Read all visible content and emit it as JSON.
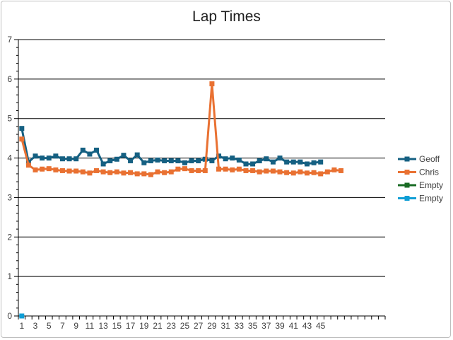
{
  "chart_data": {
    "type": "line",
    "title": "Lap Times",
    "ylim": [
      0,
      7
    ],
    "y_ticks": [
      0,
      1,
      2,
      3,
      4,
      5,
      6,
      7
    ],
    "x_tick_labels": [
      1,
      3,
      5,
      7,
      9,
      11,
      13,
      15,
      17,
      19,
      21,
      23,
      25,
      27,
      29,
      31,
      33,
      35,
      37,
      39,
      41,
      43,
      45
    ],
    "x_count": 54,
    "grid": true,
    "legend_position": "right",
    "series": [
      {
        "name": "Geoff",
        "color": "#156082",
        "marker": "square",
        "x": [
          1,
          2,
          3,
          4,
          5,
          6,
          7,
          8,
          9,
          10,
          11,
          12,
          13,
          14,
          15,
          16,
          17,
          18,
          19,
          20,
          21,
          22,
          23,
          24,
          25,
          26,
          27,
          28,
          29,
          30,
          31,
          32,
          33,
          34,
          35,
          36,
          37,
          38,
          39,
          40,
          41,
          42,
          43,
          44,
          45
        ],
        "values": [
          4.75,
          3.9,
          4.05,
          4.0,
          4.0,
          4.05,
          3.98,
          3.98,
          3.98,
          4.2,
          4.1,
          4.2,
          3.85,
          3.93,
          3.97,
          4.07,
          3.93,
          4.08,
          3.88,
          3.93,
          3.95,
          3.93,
          3.93,
          3.93,
          3.88,
          3.93,
          3.93,
          3.97,
          3.93,
          4.05,
          3.98,
          4.0,
          3.95,
          3.85,
          3.85,
          3.93,
          3.98,
          3.9,
          4.0,
          3.9,
          3.9,
          3.9,
          3.85,
          3.88,
          3.9
        ]
      },
      {
        "name": "Chris",
        "color": "#E97132",
        "marker": "square",
        "x": [
          1,
          2,
          3,
          4,
          5,
          6,
          7,
          8,
          9,
          10,
          11,
          12,
          13,
          14,
          15,
          16,
          17,
          18,
          19,
          20,
          21,
          22,
          23,
          24,
          25,
          26,
          27,
          28,
          29,
          30,
          31,
          32,
          33,
          34,
          35,
          36,
          37,
          38,
          39,
          40,
          41,
          42,
          43,
          44,
          45,
          46,
          47,
          48
        ],
        "values": [
          4.48,
          3.82,
          3.7,
          3.72,
          3.73,
          3.7,
          3.68,
          3.67,
          3.67,
          3.65,
          3.62,
          3.68,
          3.65,
          3.63,
          3.65,
          3.62,
          3.63,
          3.6,
          3.6,
          3.58,
          3.65,
          3.63,
          3.65,
          3.72,
          3.73,
          3.68,
          3.68,
          3.68,
          5.88,
          3.72,
          3.72,
          3.7,
          3.72,
          3.68,
          3.68,
          3.65,
          3.67,
          3.67,
          3.65,
          3.63,
          3.62,
          3.65,
          3.62,
          3.63,
          3.6,
          3.65,
          3.7,
          3.68
        ]
      },
      {
        "name": "Empty",
        "color": "#196B24",
        "marker": "square",
        "x": [],
        "values": []
      },
      {
        "name": "Empty",
        "color": "#0F9ED5",
        "marker": "square",
        "x": [
          1
        ],
        "values": [
          0
        ]
      }
    ]
  }
}
